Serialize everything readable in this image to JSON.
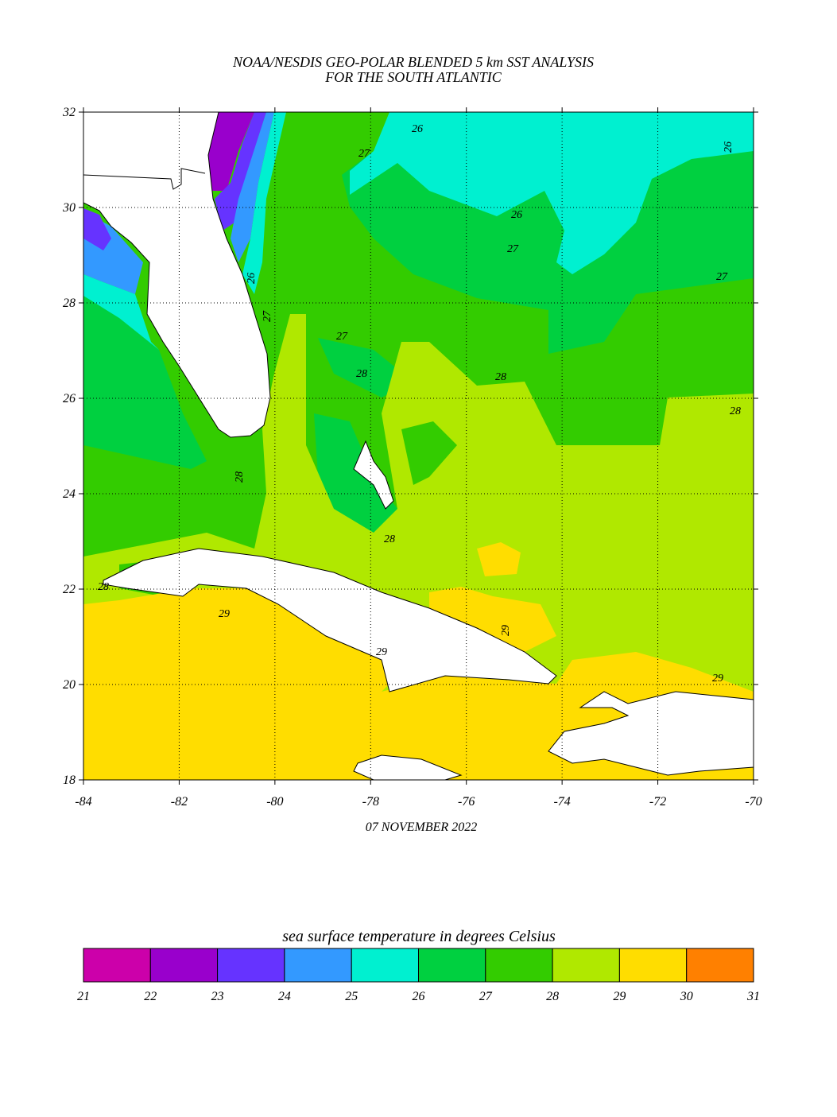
{
  "title": [
    "NOAA/NESDIS GEO-POLAR BLENDED 5 km SST ANALYSIS",
    "FOR THE SOUTH ATLANTIC"
  ],
  "map": {
    "xlim": [
      -84,
      -70
    ],
    "ylim": [
      18,
      32
    ],
    "xticks": [
      -84,
      -82,
      -80,
      -78,
      -76,
      -74,
      -72,
      -70
    ],
    "yticks": [
      18,
      20,
      22,
      24,
      26,
      28,
      30,
      32
    ],
    "grid": true
  },
  "date": "07 NOVEMBER 2022",
  "colorbar": {
    "label": "sea surface temperature in degrees Celsius",
    "ticks": [
      21,
      22,
      23,
      24,
      25,
      26,
      27,
      28,
      29,
      30,
      31
    ],
    "colors": [
      "#cc00aa",
      "#9900cc",
      "#6633ff",
      "#3399ff",
      "#00f0d0",
      "#00d040",
      "#33cc00",
      "#b0e800",
      "#ffdd00",
      "#ff8000"
    ]
  },
  "contour_labels": [
    "26",
    "27",
    "26",
    "26",
    "27",
    "27",
    "26",
    "27",
    "27",
    "28",
    "28",
    "28",
    "28",
    "28",
    "28",
    "29",
    "29",
    "29",
    "29"
  ]
}
